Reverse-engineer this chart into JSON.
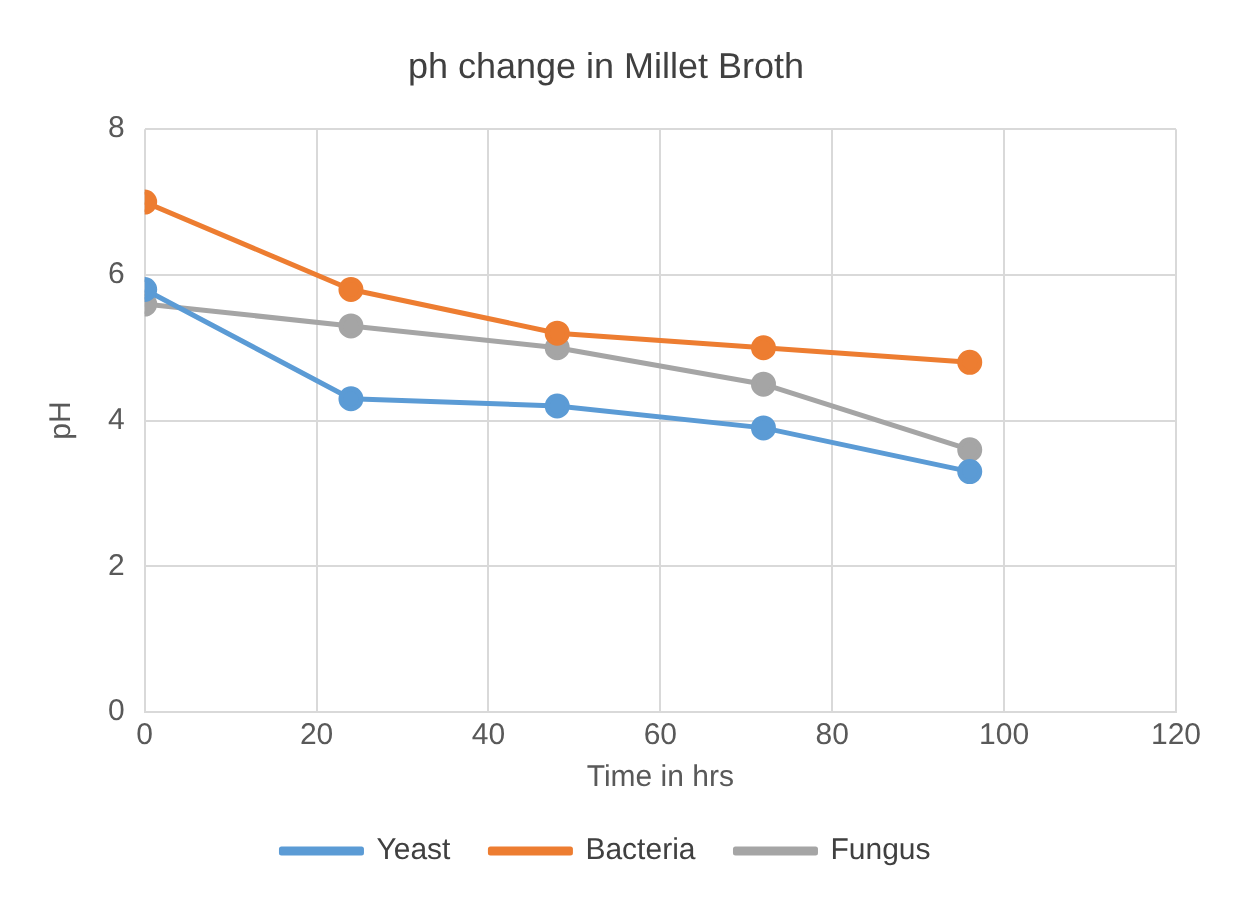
{
  "chart_data": {
    "type": "line",
    "title": "ph change in Millet Broth",
    "xlabel": "Time in hrs",
    "ylabel": "pH",
    "x": [
      0,
      24,
      48,
      72,
      96
    ],
    "series": [
      {
        "name": "Yeast",
        "color": "#5b9bd5",
        "values": [
          5.8,
          4.3,
          4.2,
          3.9,
          3.3
        ]
      },
      {
        "name": "Bacteria",
        "color": "#ed7d31",
        "values": [
          7.0,
          5.8,
          5.2,
          5.0,
          4.8
        ]
      },
      {
        "name": "Fungus",
        "color": "#a5a5a5",
        "values": [
          5.6,
          5.3,
          5.0,
          4.5,
          3.6
        ]
      }
    ],
    "xlim": [
      0,
      120
    ],
    "xticks": [
      0,
      20,
      40,
      60,
      80,
      100,
      120
    ],
    "ylim": [
      0,
      8
    ],
    "yticks": [
      0,
      2,
      4,
      6,
      8
    ],
    "grid": true,
    "legend": "bottom",
    "marker": "circle",
    "line_style": "solid"
  }
}
